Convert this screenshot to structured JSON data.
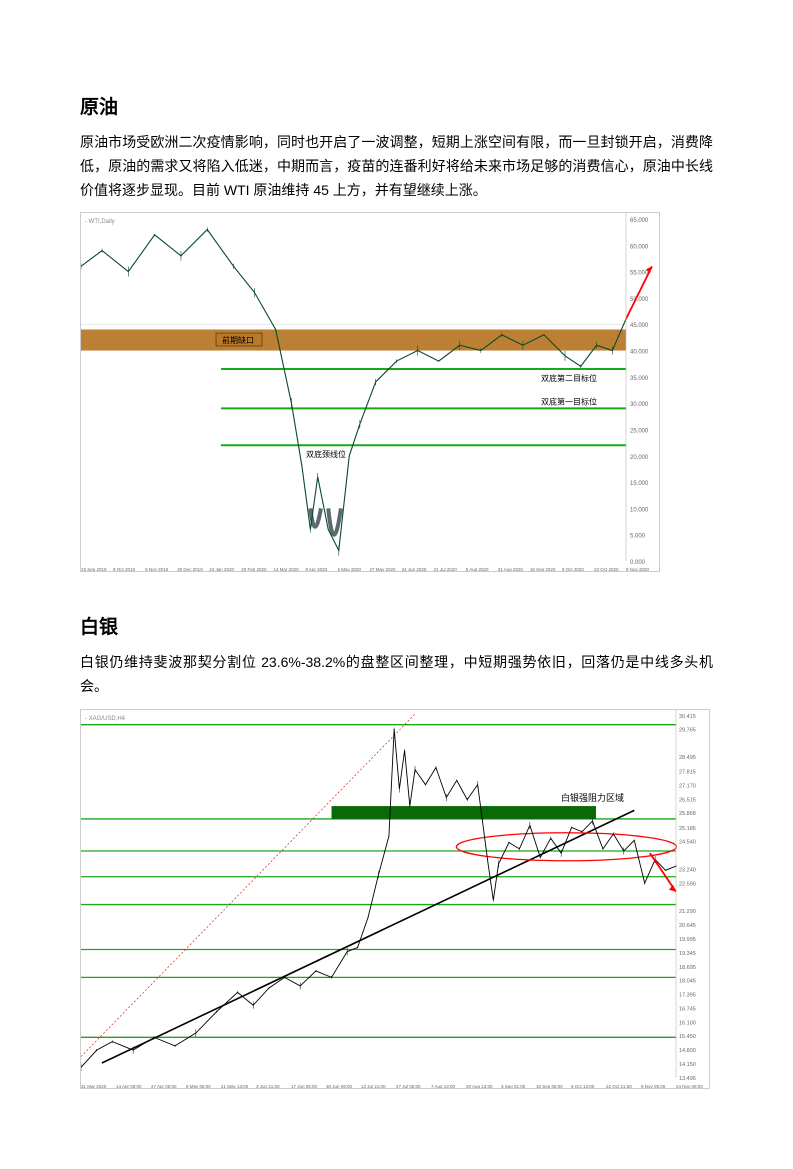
{
  "oil": {
    "title": "原油",
    "para": "原油市场受欧洲二次疫情影响，同时也开启了一波调整，短期上涨空间有限，而一旦封锁开启，消费降低，原油的需求又将陷入低迷，中期而言，疫苗的连番利好将给未来市场足够的消费信心，原油中长线价值将逐步显现。目前 WTI 原油维持 45 上方，并有望继续上涨。",
    "chart": {
      "ticker": "WTI,Daily",
      "bg": "#ffffff",
      "price_color": "#0a4a2a",
      "gap_box": {
        "color": "#b8792a",
        "label": "前期缺口",
        "label_color": "#000000",
        "y_top": 40,
        "y_bot": 44,
        "label_box_bg": "#b8792a"
      },
      "lines": [
        {
          "y": 36.5,
          "color": "#1aa81a",
          "label": "双底第二目标位"
        },
        {
          "y": 29.0,
          "color": "#1aa81a",
          "label": "双底第一目标位"
        },
        {
          "y": 22.0,
          "color": "#1aa81a",
          "label": "双底颈线位"
        }
      ],
      "double_bottom_arc_color": "#5a6a70",
      "arrow_color": "#ff0000",
      "y_min": 0,
      "y_max": 65,
      "y_ticks": [
        65,
        60,
        55,
        50,
        45,
        40,
        35,
        30,
        25,
        20,
        15,
        10,
        5,
        0
      ],
      "x_ticks": [
        "15 Sep 2019",
        "9 Oct 2019",
        "6 Nov 2019",
        "30 Dec 2019",
        "24 Jan 2020",
        "20 Feb 2020",
        "13 Mar 2020",
        "8 Apr 2020",
        "5 May 2020",
        "27 May 2020",
        "24 Jun 2020",
        "21 Jul 2020",
        "5 Aug 2020",
        "31 Aug 2020",
        "16 Sep 2020",
        "9 Oct 2020",
        "23 Oct 2020",
        "9 Nov 2020"
      ],
      "price_path": [
        [
          0,
          56
        ],
        [
          20,
          59
        ],
        [
          45,
          55
        ],
        [
          70,
          62
        ],
        [
          95,
          58
        ],
        [
          120,
          63
        ],
        [
          145,
          56
        ],
        [
          165,
          51
        ],
        [
          185,
          44
        ],
        [
          200,
          30
        ],
        [
          210,
          18
        ],
        [
          218,
          6
        ],
        [
          225,
          16
        ],
        [
          235,
          6
        ],
        [
          245,
          2
        ],
        [
          255,
          20
        ],
        [
          265,
          26
        ],
        [
          280,
          34
        ],
        [
          300,
          38
        ],
        [
          320,
          40
        ],
        [
          340,
          38
        ],
        [
          360,
          41
        ],
        [
          380,
          40
        ],
        [
          400,
          43
        ],
        [
          420,
          41
        ],
        [
          440,
          43
        ],
        [
          460,
          39
        ],
        [
          475,
          37
        ],
        [
          490,
          41
        ],
        [
          505,
          40
        ],
        [
          518,
          46
        ]
      ]
    }
  },
  "silver": {
    "title": "白银",
    "para": "白银仍维持斐波那契分割位 23.6%-38.2%的盘整区间整理，中短期强势依旧，回落仍是中线多头机会。",
    "chart": {
      "ticker": "XAG/USD,H4",
      "bg": "#ffffff",
      "price_color": "#000000",
      "fib_lines": [
        {
          "y": 30.0,
          "color": "#1aa81a"
        },
        {
          "y": 25.6,
          "color": "#1aa81a"
        },
        {
          "y": 24.1,
          "color": "#1aa81a"
        },
        {
          "y": 22.9,
          "color": "#1aa81a"
        },
        {
          "y": 21.6,
          "color": "#1aa81a"
        },
        {
          "y": 19.5,
          "color": "#1aa81a"
        },
        {
          "y": 18.2,
          "color": "#1aa81a"
        },
        {
          "y": 15.4,
          "color": "#1aa81a"
        }
      ],
      "resistance_bar": {
        "y_top": 26.2,
        "y_bot": 25.6,
        "color": "#0a6a0a",
        "label": "白银强阻力区域"
      },
      "ellipse_color": "#ff0000",
      "trendline_color": "#000000",
      "dotted_line_color": "#cc0000",
      "arrow_color": "#ff0000",
      "y_min": 13.5,
      "y_max": 30.5,
      "y_ticks": [
        "30.415",
        "29.765",
        "28.495",
        "27.815",
        "27.170",
        "26.515",
        "25.868",
        "25.185",
        "24.540",
        "23.240",
        "22.590",
        "21.290",
        "20.645",
        "19.995",
        "19.345",
        "18.695",
        "18.045",
        "17.395",
        "16.745",
        "16.100",
        "15.450",
        "14.800",
        "14.150",
        "13.495"
      ],
      "x_ticks": [
        "31 Mar 2020",
        "14 Apr 06:00",
        "27 Apr 06:00",
        "8 May 06:00",
        "21 May 13:00",
        "3 Jun 21:00",
        "17 Jun 05:00",
        "30 Jun 09:00",
        "13 Jul 21:00",
        "27 Jul 05:00",
        "7 Aug 13:00",
        "20 Aug 13:00",
        "3 Sep 01:00",
        "16 Sep 05:00",
        "9 Oct 13:00",
        "22 Oct 21:00",
        "9 Nov 05:00",
        "24 Nov 09:00"
      ],
      "price_path": [
        [
          0,
          14.0
        ],
        [
          15,
          14.8
        ],
        [
          30,
          15.2
        ],
        [
          50,
          14.8
        ],
        [
          70,
          15.4
        ],
        [
          90,
          15.0
        ],
        [
          110,
          15.6
        ],
        [
          130,
          16.6
        ],
        [
          150,
          17.5
        ],
        [
          165,
          16.9
        ],
        [
          180,
          17.7
        ],
        [
          195,
          18.2
        ],
        [
          210,
          17.8
        ],
        [
          225,
          18.5
        ],
        [
          240,
          18.2
        ],
        [
          255,
          19.4
        ],
        [
          265,
          19.6
        ],
        [
          275,
          21.0
        ],
        [
          285,
          23.0
        ],
        [
          295,
          24.8
        ],
        [
          300,
          29.8
        ],
        [
          305,
          27.0
        ],
        [
          310,
          28.8
        ],
        [
          315,
          26.2
        ],
        [
          320,
          27.9
        ],
        [
          330,
          27.2
        ],
        [
          340,
          28.0
        ],
        [
          350,
          26.6
        ],
        [
          360,
          27.4
        ],
        [
          370,
          26.5
        ],
        [
          380,
          27.2
        ],
        [
          390,
          23.5
        ],
        [
          395,
          21.8
        ],
        [
          400,
          23.5
        ],
        [
          410,
          24.5
        ],
        [
          420,
          24.2
        ],
        [
          430,
          25.3
        ],
        [
          440,
          23.8
        ],
        [
          450,
          24.7
        ],
        [
          460,
          24.0
        ],
        [
          470,
          25.2
        ],
        [
          480,
          25.0
        ],
        [
          490,
          25.5
        ],
        [
          500,
          24.2
        ],
        [
          510,
          24.9
        ],
        [
          520,
          24.1
        ],
        [
          530,
          24.6
        ],
        [
          540,
          22.6
        ],
        [
          550,
          23.7
        ],
        [
          560,
          23.2
        ],
        [
          570,
          23.4
        ]
      ]
    }
  }
}
